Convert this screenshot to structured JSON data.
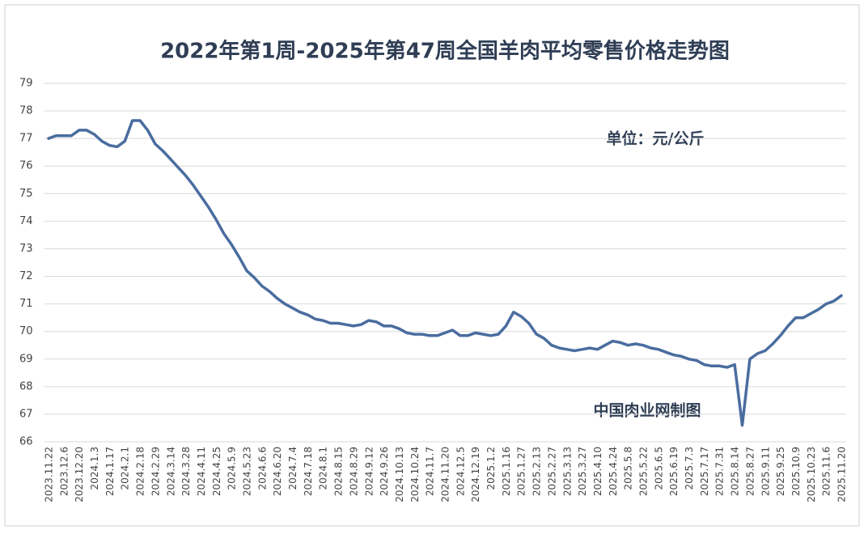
{
  "chart_data": {
    "type": "line",
    "title": "2022年第1周-2025年第47周全国羊肉平均零售价格走势图",
    "annotations": [
      "单位：元/公斤",
      "中国肉业网制图"
    ],
    "categories": [
      "2023.11.22",
      null,
      "2023.12.6",
      null,
      "2023.12.20",
      null,
      "2024.1.3",
      null,
      "2024.1.17",
      null,
      "2024.2.1",
      null,
      "2024.2.18",
      null,
      "2024.2.29",
      null,
      "2024.3.14",
      null,
      "2024.3.28",
      null,
      "2024.4.11",
      null,
      "2024.4.25",
      null,
      "2024.5.9",
      null,
      "2024.5.23",
      null,
      "2024.6.6",
      null,
      "2024.6.20",
      null,
      "2024.7.4",
      null,
      "2024.7.18",
      null,
      "2024.8.1",
      null,
      "2024.8.15",
      null,
      "2024.8.29",
      null,
      "2024.9.12",
      null,
      "2024.9.26",
      null,
      "2024.10.13",
      null,
      "2024.10.24",
      null,
      "2024.11.7",
      null,
      "2024.11.20",
      null,
      "2024.12.5",
      null,
      "2024.12.19",
      null,
      "2025.1.2",
      null,
      "2025.1.16",
      null,
      "2025.1.27",
      null,
      "2025.2.13",
      null,
      "2025.2.27",
      null,
      "2025.3.13",
      null,
      "2025.3.27",
      null,
      "2025.4.10",
      null,
      "2025.4.24",
      null,
      "2025.5.8",
      null,
      "2025.5.22",
      null,
      "2025.6.5",
      null,
      "2025.6.19",
      null,
      "2025.7.3",
      null,
      "2025.7.17",
      null,
      "2025.7.31",
      null,
      "2025.8.14",
      null,
      "2025.8.27",
      null,
      "2025.9.11",
      null,
      "2025.9.25",
      null,
      "2025.10.9",
      null,
      "2025.10.23",
      null,
      "2025.11.6",
      null,
      "2025.11.20"
    ],
    "series": [
      {
        "color": "#4a6d9f",
        "values": [
          77.0,
          77.1,
          77.1,
          77.1,
          77.3,
          77.3,
          77.15,
          76.9,
          76.75,
          76.7,
          76.9,
          77.65,
          77.65,
          77.3,
          76.8,
          76.55,
          76.25,
          75.95,
          75.65,
          75.3,
          74.9,
          74.5,
          74.05,
          73.55,
          73.15,
          72.7,
          72.2,
          71.95,
          71.65,
          71.45,
          71.2,
          71.0,
          70.85,
          70.7,
          70.6,
          70.45,
          70.4,
          70.3,
          70.3,
          70.25,
          70.2,
          70.25,
          70.4,
          70.35,
          70.2,
          70.2,
          70.1,
          69.95,
          69.9,
          69.9,
          69.85,
          69.85,
          69.95,
          70.05,
          69.85,
          69.85,
          69.95,
          69.9,
          69.85,
          69.9,
          70.2,
          70.7,
          70.55,
          70.3,
          69.9,
          69.75,
          69.5,
          69.4,
          69.35,
          69.3,
          69.35,
          69.4,
          69.35,
          69.5,
          69.65,
          69.6,
          69.5,
          69.55,
          69.5,
          69.4,
          69.35,
          69.25,
          69.15,
          69.1,
          69.0,
          68.95,
          68.8,
          68.75,
          68.75,
          68.7,
          68.8,
          66.6,
          69.0,
          69.2,
          69.3,
          69.55,
          69.85,
          70.2,
          70.5,
          70.5,
          70.65,
          70.8,
          71.0,
          71.1,
          71.3
        ]
      }
    ],
    "ylim": [
      66,
      79
    ],
    "yticks": [
      66,
      67,
      68,
      69,
      70,
      71,
      72,
      73,
      74,
      75,
      76,
      77,
      78,
      79
    ],
    "grid": true
  }
}
